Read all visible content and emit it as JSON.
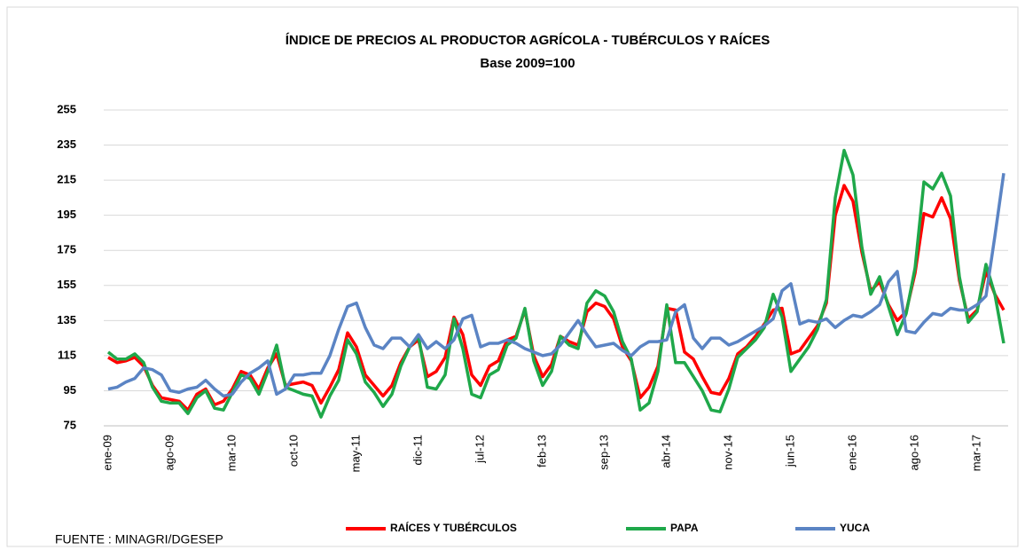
{
  "chart_data": {
    "type": "line",
    "title": "ÍNDICE DE PRECIOS AL PRODUCTOR AGRÍCOLA - TUBÉRCULOS Y RAÍCES",
    "subtitle": "Base 2009=100",
    "source": "FUENTE : MINAGRI/DGESEP",
    "categories": [
      "ene-09",
      null,
      null,
      null,
      null,
      null,
      null,
      "ago-09",
      null,
      null,
      null,
      null,
      null,
      null,
      "mar-10",
      null,
      null,
      null,
      null,
      null,
      null,
      "oct-10",
      null,
      null,
      null,
      null,
      null,
      null,
      "may-11",
      null,
      null,
      null,
      null,
      null,
      null,
      "dic-11",
      null,
      null,
      null,
      null,
      null,
      null,
      "jul-12",
      null,
      null,
      null,
      null,
      null,
      null,
      "feb-13",
      null,
      null,
      null,
      null,
      null,
      null,
      "sep-13",
      null,
      null,
      null,
      null,
      null,
      null,
      "abr-14",
      null,
      null,
      null,
      null,
      null,
      null,
      "nov-14",
      null,
      null,
      null,
      null,
      null,
      null,
      "jun-15",
      null,
      null,
      null,
      null,
      null,
      null,
      "ene-16",
      null,
      null,
      null,
      null,
      null,
      null,
      "ago-16",
      null,
      null,
      null,
      null,
      null,
      null,
      "mar-17",
      null,
      null,
      null
    ],
    "series": [
      {
        "name": "RAÍCES Y TUBÉRCULOS",
        "color": "#ff0000",
        "values": [
          114,
          111,
          112,
          114,
          109,
          98,
          91,
          90,
          89,
          84,
          93,
          96,
          87,
          89,
          96,
          106,
          104,
          96,
          108,
          116,
          98,
          99,
          100,
          98,
          88,
          97,
          107,
          128,
          120,
          104,
          98,
          92,
          98,
          111,
          120,
          124,
          103,
          106,
          114,
          137,
          127,
          104,
          98,
          109,
          112,
          124,
          126,
          141,
          115,
          103,
          110,
          126,
          123,
          121,
          140,
          145,
          143,
          136,
          120,
          112,
          91,
          97,
          109,
          142,
          141,
          117,
          113,
          103,
          94,
          93,
          102,
          116,
          120,
          126,
          133,
          141,
          142,
          116,
          118,
          125,
          132,
          145,
          195,
          212,
          203,
          174,
          152,
          157,
          144,
          135,
          140,
          162,
          196,
          194,
          205,
          193,
          158,
          136,
          141,
          163,
          150,
          141
        ]
      },
      {
        "name": "PAPA",
        "color": "#1fa84a",
        "values": [
          117,
          113,
          113,
          116,
          111,
          97,
          89,
          88,
          88,
          82,
          91,
          95,
          85,
          84,
          94,
          104,
          102,
          93,
          106,
          121,
          97,
          95,
          93,
          92,
          80,
          92,
          101,
          124,
          116,
          100,
          94,
          86,
          93,
          109,
          120,
          126,
          97,
          96,
          104,
          136,
          119,
          93,
          91,
          104,
          107,
          121,
          125,
          142,
          112,
          98,
          106,
          126,
          121,
          119,
          145,
          152,
          149,
          140,
          123,
          113,
          84,
          88,
          106,
          144,
          111,
          111,
          103,
          95,
          84,
          83,
          96,
          114,
          119,
          124,
          131,
          150,
          137,
          106,
          113,
          120,
          130,
          147,
          205,
          232,
          218,
          177,
          150,
          160,
          143,
          127,
          139,
          165,
          214,
          210,
          219,
          206,
          160,
          134,
          140,
          167,
          150,
          122
        ]
      },
      {
        "name": "YUCA",
        "color": "#5b84c4",
        "values": [
          96,
          97,
          100,
          102,
          108,
          107,
          104,
          95,
          94,
          96,
          97,
          101,
          96,
          92,
          93,
          100,
          105,
          108,
          112,
          93,
          96,
          104,
          104,
          105,
          105,
          115,
          130,
          143,
          145,
          131,
          121,
          119,
          125,
          125,
          120,
          127,
          119,
          123,
          119,
          124,
          136,
          138,
          120,
          122,
          122,
          124,
          122,
          119,
          117,
          115,
          116,
          121,
          128,
          135,
          127,
          120,
          121,
          122,
          118,
          115,
          120,
          123,
          123,
          124,
          140,
          144,
          125,
          119,
          125,
          125,
          121,
          123,
          126,
          129,
          132,
          136,
          152,
          156,
          133,
          135,
          134,
          136,
          131,
          135,
          138,
          137,
          140,
          144,
          157,
          163,
          129,
          128,
          134,
          139,
          138,
          142,
          141,
          141,
          144,
          149,
          183,
          219
        ]
      }
    ],
    "ylim": [
      75,
      255
    ],
    "yticks": [
      75,
      95,
      115,
      135,
      155,
      175,
      195,
      215,
      235,
      255
    ],
    "grid": true,
    "legend": "bottom"
  }
}
